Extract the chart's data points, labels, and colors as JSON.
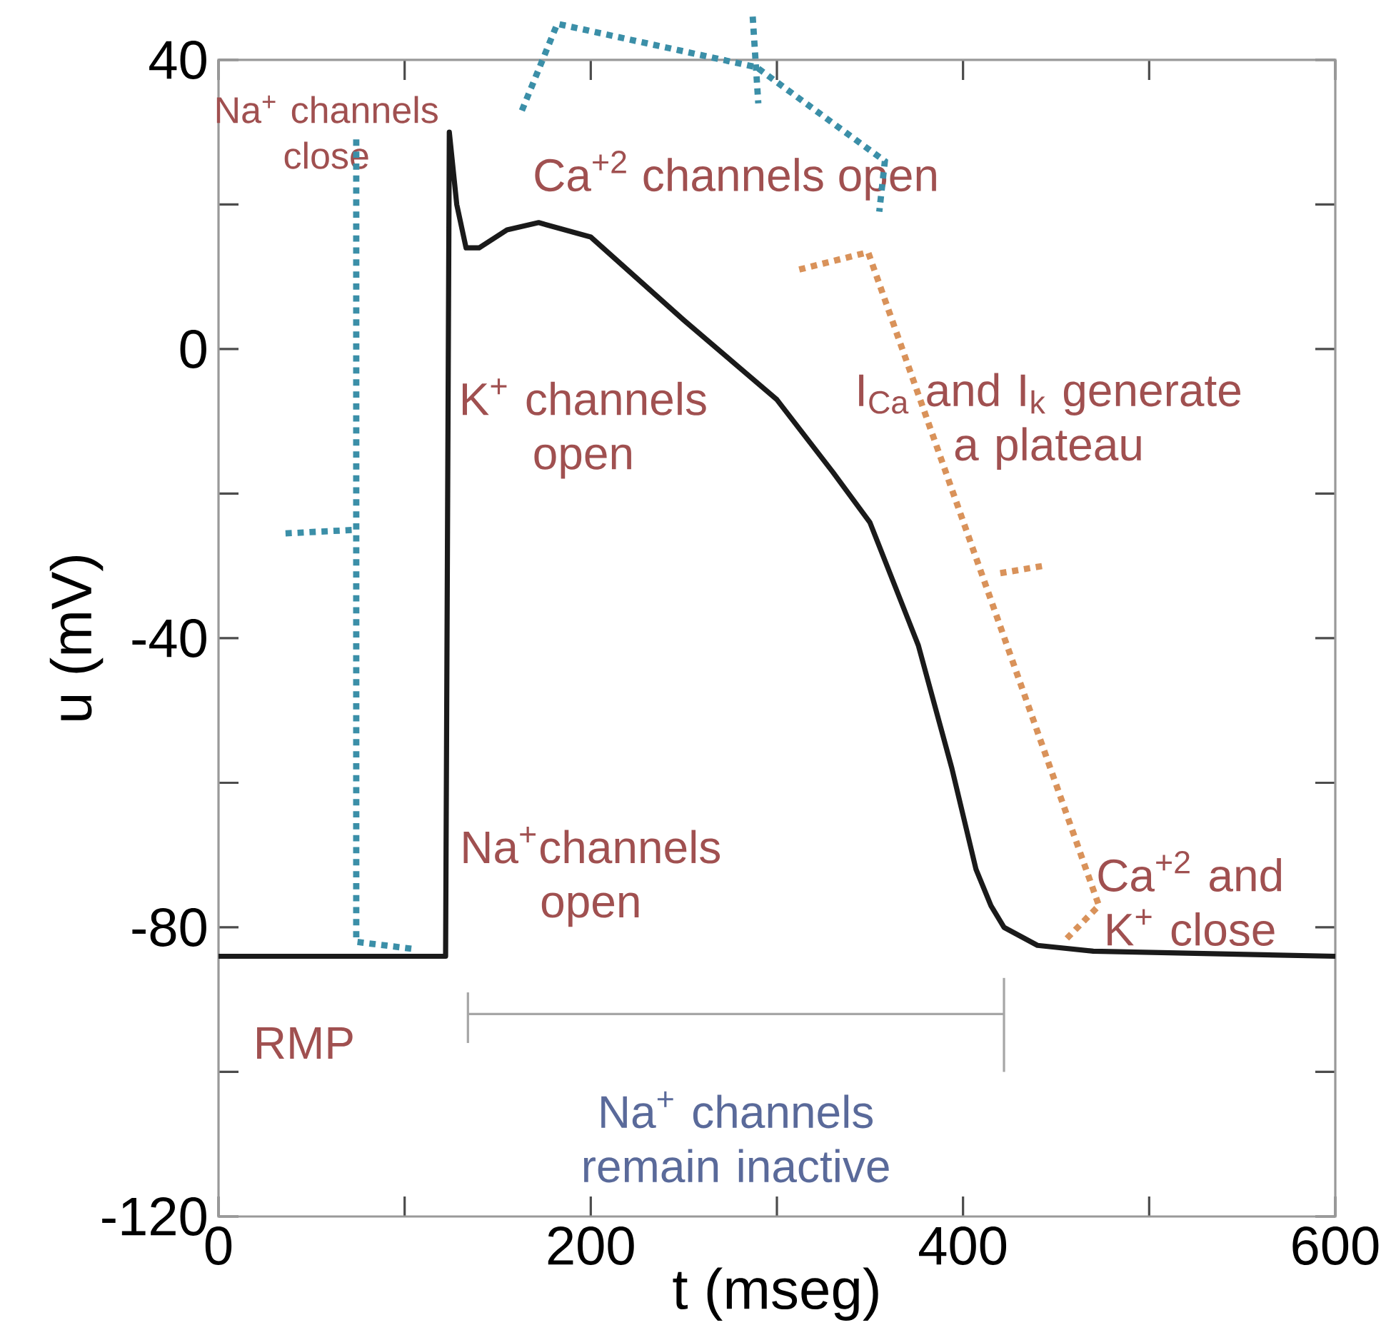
{
  "chart_data": {
    "type": "line",
    "xlabel": "t (mseg)",
    "ylabel": "u (mV)",
    "xlim": [
      0,
      600
    ],
    "ylim": [
      -120,
      40
    ],
    "xticks": [
      0,
      {
        "value": 100,
        "label": null
      },
      200,
      {
        "value": 300,
        "label": null
      },
      400,
      {
        "value": 500,
        "label": null
      },
      600
    ],
    "yticks": [
      -120,
      {
        "value": -100,
        "label": null
      },
      -80,
      {
        "value": -60,
        "label": null
      },
      -40,
      {
        "value": -20,
        "label": null
      },
      0,
      {
        "value": 20,
        "label": null
      },
      40
    ],
    "series": [
      {
        "color": "#1a1a1a",
        "x": [
          0,
          122,
          124,
          128,
          133,
          140,
          155,
          172,
          200,
          250,
          300,
          330,
          350,
          376,
          394,
          407,
          415,
          422,
          440,
          470,
          600
        ],
        "values": [
          -84,
          -84,
          30,
          20,
          14,
          14,
          16.5,
          17.5,
          15.5,
          4,
          -7,
          -17,
          -24,
          -41,
          -58,
          -72,
          -77,
          -80,
          -82.5,
          -83.3,
          -84
        ]
      },
      {
        "color": "#a6a6a6",
        "x": [
          134,
          422
        ],
        "values": [
          -92,
          -92
        ]
      }
    ],
    "line_style": "solid",
    "marker": "none",
    "annotations": [
      "Na$^{+}$ channels close",
      "Ca$^{+2}$ channels open",
      "K$^{+}$ channels open",
      "I$_{Ca}$ and I$_{k}$ generate a plateau",
      "Na$^{+}$channels open",
      "Ca$^{+2}$ and K$^{+}$ close",
      "RMP",
      "Na$^{+}$ channels remain inactive"
    ]
  }
}
